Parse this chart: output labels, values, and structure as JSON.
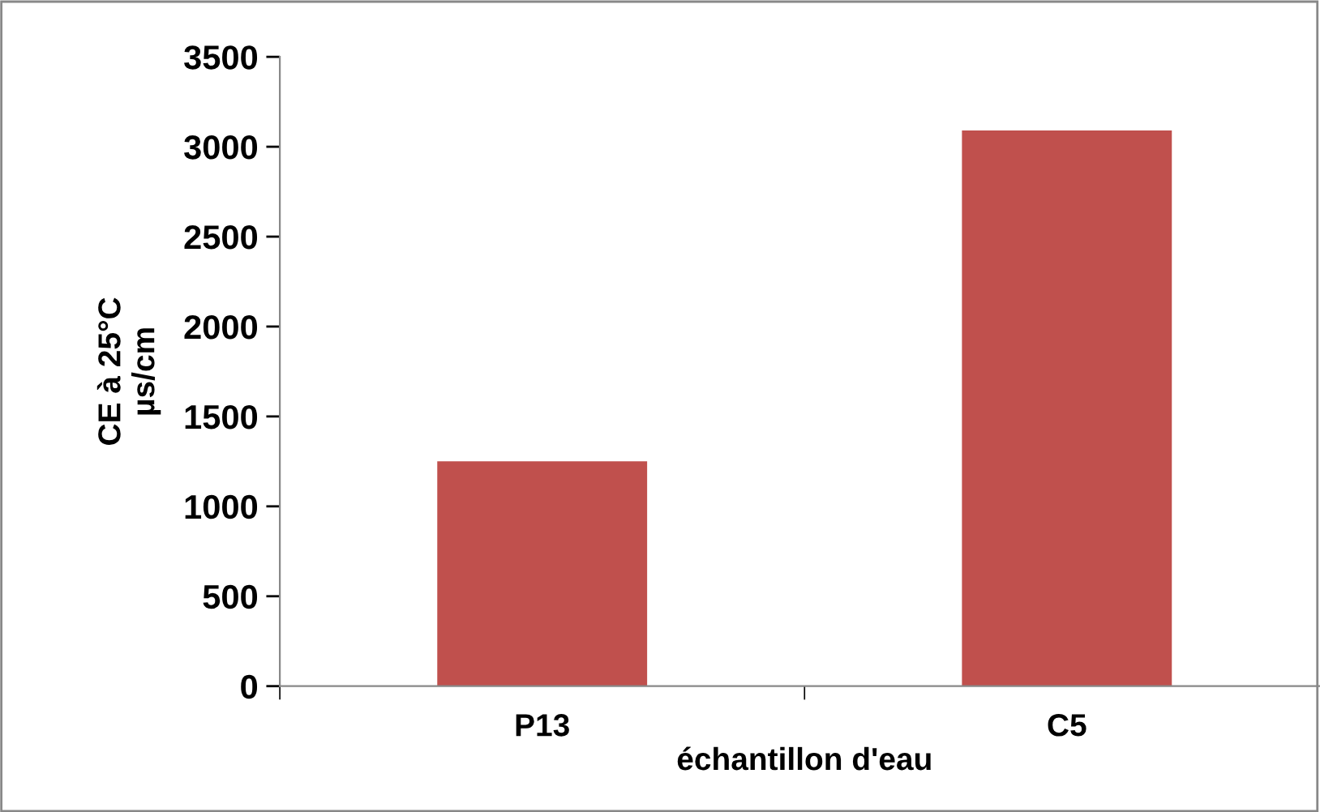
{
  "chart_data": {
    "type": "bar",
    "categories": [
      "P13",
      "C5"
    ],
    "values": [
      1250,
      3090
    ],
    "color": "#c0504d",
    "xlabel": "échantillon d'eau",
    "ylabel": "CE à 25°C\nµs/cm",
    "ylim": [
      0,
      3500
    ],
    "yticks": [
      0,
      500,
      1000,
      1500,
      2000,
      2500,
      3000,
      3500
    ],
    "grid": false
  }
}
